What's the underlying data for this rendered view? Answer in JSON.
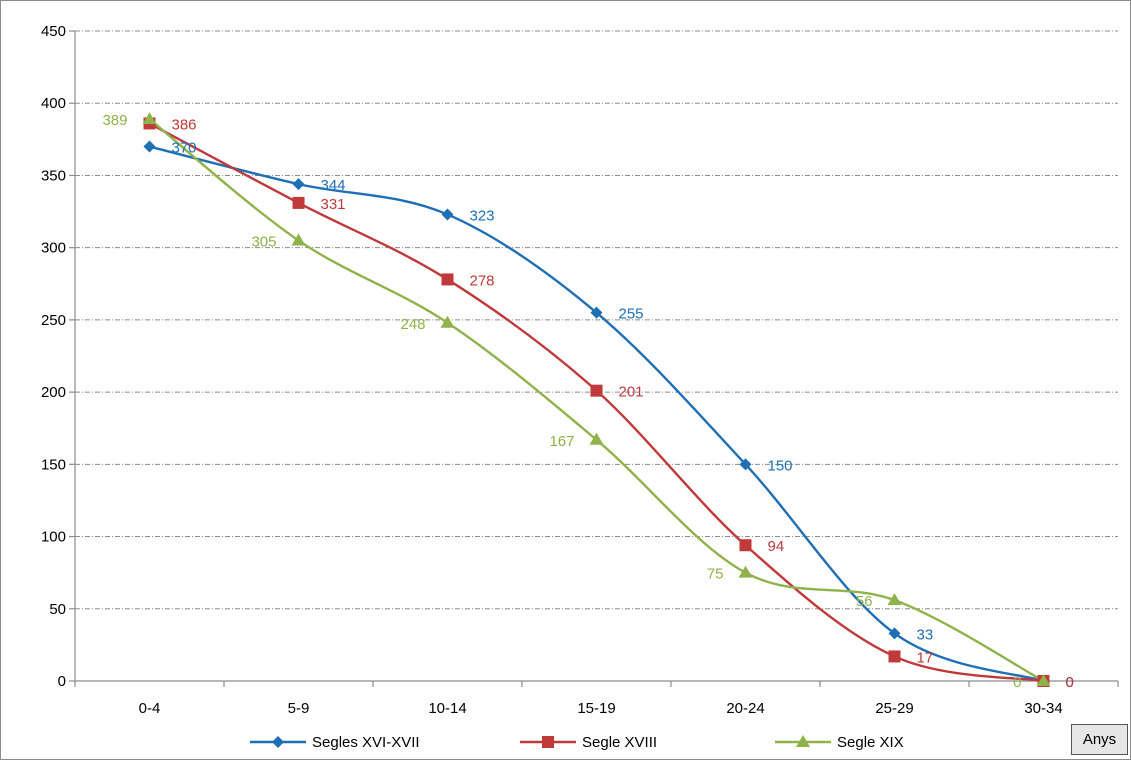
{
  "chart_data": {
    "type": "line",
    "categories": [
      "0-4",
      "5-9",
      "10-14",
      "15-19",
      "20-24",
      "25-29",
      "30-34"
    ],
    "ylim": [
      0,
      450
    ],
    "yticks": [
      0,
      50,
      100,
      150,
      200,
      250,
      300,
      350,
      400,
      450
    ],
    "grid": true,
    "legend_position": "bottom",
    "series": [
      {
        "name": "Segles XVI-XVII",
        "values": [
          370,
          344,
          323,
          255,
          150,
          33,
          0
        ],
        "color": "#1f6fb6",
        "marker": "diamond"
      },
      {
        "name": "Segle XVIII",
        "values": [
          386,
          331,
          278,
          201,
          94,
          17,
          0
        ],
        "color": "#c0393b",
        "marker": "square"
      },
      {
        "name": "Segle XIX",
        "values": [
          389,
          305,
          248,
          167,
          75,
          56,
          0
        ],
        "color": "#8fb24a",
        "marker": "triangle"
      }
    ]
  },
  "axis_button": {
    "label": "Anys"
  }
}
